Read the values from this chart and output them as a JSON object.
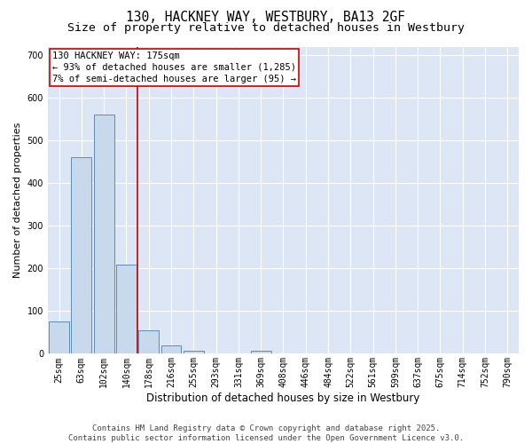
{
  "title_line1": "130, HACKNEY WAY, WESTBURY, BA13 2GF",
  "title_line2": "Size of property relative to detached houses in Westbury",
  "xlabel": "Distribution of detached houses by size in Westbury",
  "ylabel": "Number of detached properties",
  "categories": [
    "25sqm",
    "63sqm",
    "102sqm",
    "140sqm",
    "178sqm",
    "216sqm",
    "255sqm",
    "293sqm",
    "331sqm",
    "369sqm",
    "408sqm",
    "446sqm",
    "484sqm",
    "522sqm",
    "561sqm",
    "599sqm",
    "637sqm",
    "675sqm",
    "714sqm",
    "752sqm",
    "790sqm"
  ],
  "values": [
    75,
    460,
    560,
    210,
    55,
    20,
    8,
    0,
    0,
    8,
    0,
    0,
    0,
    0,
    0,
    0,
    0,
    0,
    0,
    0,
    0
  ],
  "bar_color": "#c9d9ec",
  "bar_edge_color": "#5b8db8",
  "vline_x_index": 3.5,
  "vline_color": "#cc0000",
  "annotation_line1": "130 HACKNEY WAY: 175sqm",
  "annotation_line2": "← 93% of detached houses are smaller (1,285)",
  "annotation_line3": "7% of semi-detached houses are larger (95) →",
  "annotation_box_facecolor": "#ffffff",
  "annotation_box_edgecolor": "#cc0000",
  "ylim": [
    0,
    720
  ],
  "yticks": [
    0,
    100,
    200,
    300,
    400,
    500,
    600,
    700
  ],
  "background_color": "#dce6f5",
  "grid_color": "#ffffff",
  "fig_facecolor": "#ffffff",
  "footer_line1": "Contains HM Land Registry data © Crown copyright and database right 2025.",
  "footer_line2": "Contains public sector information licensed under the Open Government Licence v3.0.",
  "title_fontsize": 10.5,
  "subtitle_fontsize": 9.5,
  "axis_label_fontsize": 8.5,
  "tick_fontsize": 7,
  "annotation_fontsize": 7.5,
  "footer_fontsize": 6.5,
  "ylabel_fontsize": 8
}
